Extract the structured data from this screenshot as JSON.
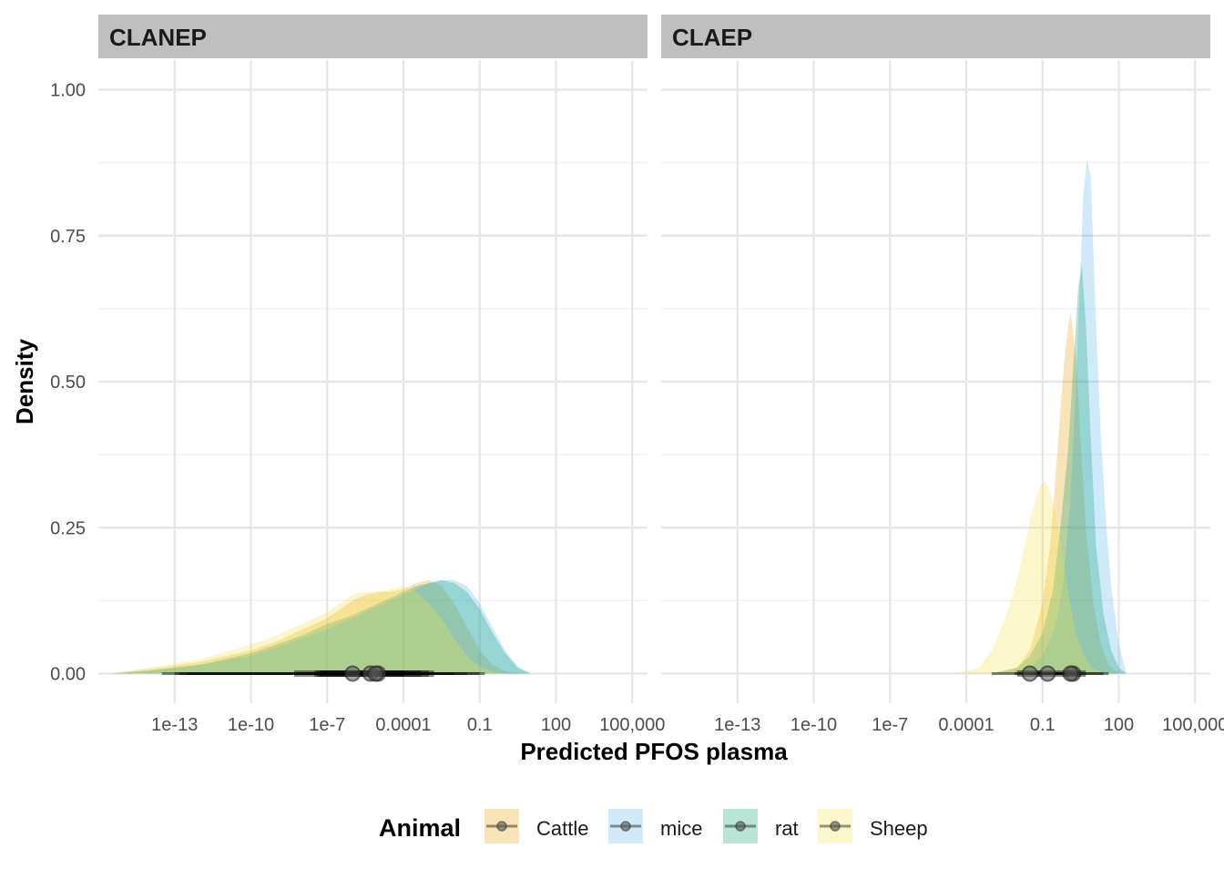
{
  "chart_data": {
    "type": "area",
    "subtype": "faceted density (ridgeline-style) with median and interval points",
    "xlabel": "Predicted PFOS plasma",
    "ylabel": "Density",
    "x_scale": "log10",
    "x_ticks": [
      {
        "value": 1e-13,
        "label": "1e-13"
      },
      {
        "value": 1e-10,
        "label": "1e-10"
      },
      {
        "value": 1e-07,
        "label": "1e-7"
      },
      {
        "value": 0.0001,
        "label": "0.0001"
      },
      {
        "value": 0.1,
        "label": "0.1"
      },
      {
        "value": 100,
        "label": "100"
      },
      {
        "value": 100000,
        "label": "100,000"
      }
    ],
    "xlim_log10": [
      -16.0,
      5.6
    ],
    "ylim": [
      0,
      1.05
    ],
    "y_ticks": [
      {
        "value": 0,
        "label": "0.00"
      },
      {
        "value": 0.25,
        "label": "0.25"
      },
      {
        "value": 0.5,
        "label": "0.50"
      },
      {
        "value": 0.75,
        "label": "0.75"
      },
      {
        "value": 1.0,
        "label": "1.00"
      }
    ],
    "grid": true,
    "legend": {
      "title": "Animal",
      "position": "bottom",
      "entries": [
        {
          "name": "Cattle",
          "color": "#E69F00"
        },
        {
          "name": "mice",
          "color": "#56B4E9"
        },
        {
          "name": "rat",
          "color": "#009E73"
        },
        {
          "name": "Sheep",
          "color": "#F0E442"
        }
      ]
    },
    "fill_opacity": 0.28,
    "facets": [
      {
        "title": "CLANEP",
        "series": [
          {
            "name": "Cattle",
            "color": "#E69F00",
            "log10_x": [
              -15.5,
              -14,
              -12,
              -10,
              -9,
              -8,
              -7,
              -6.5,
              -6,
              -5.5,
              -5,
              -4.5,
              -4,
              -3.5,
              -3,
              -2.5,
              -2,
              -1.5,
              -1,
              -0.5,
              0,
              0.5
            ],
            "density": [
              0,
              0.008,
              0.02,
              0.04,
              0.055,
              0.075,
              0.095,
              0.11,
              0.125,
              0.135,
              0.14,
              0.14,
              0.145,
              0.155,
              0.16,
              0.15,
              0.12,
              0.08,
              0.04,
              0.015,
              0.004,
              0
            ],
            "median_log10": -5.3,
            "interval50_log10": [
              -7.5,
              -3.3
            ],
            "interval95_log10": [
              -13,
              -1.5
            ]
          },
          {
            "name": "mice",
            "color": "#56B4E9",
            "log10_x": [
              -15.5,
              -14,
              -12,
              -10,
              -9,
              -8,
              -7,
              -6,
              -5,
              -4.5,
              -4,
              -3.5,
              -3,
              -2.5,
              -2,
              -1.5,
              -1,
              -0.5,
              0,
              0.5,
              1
            ],
            "density": [
              0,
              0.005,
              0.015,
              0.03,
              0.045,
              0.06,
              0.075,
              0.095,
              0.115,
              0.125,
              0.135,
              0.145,
              0.155,
              0.16,
              0.16,
              0.15,
              0.12,
              0.08,
              0.04,
              0.012,
              0
            ],
            "median_log10": -5.0,
            "interval50_log10": [
              -7.3,
              -2.8
            ],
            "interval95_log10": [
              -12.5,
              -0.8
            ]
          },
          {
            "name": "rat",
            "color": "#009E73",
            "log10_x": [
              -15.5,
              -14,
              -12,
              -10,
              -9,
              -8,
              -7,
              -6,
              -5,
              -4.5,
              -4,
              -3.5,
              -3,
              -2.5,
              -2,
              -1.5,
              -1,
              -0.5,
              0,
              0.5,
              1
            ],
            "density": [
              0,
              0.005,
              0.015,
              0.035,
              0.05,
              0.065,
              0.085,
              0.1,
              0.12,
              0.13,
              0.14,
              0.15,
              0.155,
              0.16,
              0.155,
              0.14,
              0.11,
              0.07,
              0.035,
              0.01,
              0
            ],
            "median_log10": -5.1,
            "interval50_log10": [
              -7.4,
              -3.0
            ],
            "interval95_log10": [
              -12.8,
              -1.0
            ]
          },
          {
            "name": "Sheep",
            "color": "#F0E442",
            "log10_x": [
              -15.5,
              -14,
              -12,
              -10,
              -9,
              -8,
              -7,
              -6.5,
              -6,
              -5.5,
              -5,
              -4.5,
              -4,
              -3.5,
              -3,
              -2.5,
              -2,
              -1.5,
              -1,
              -0.5,
              0
            ],
            "density": [
              0,
              0.01,
              0.025,
              0.05,
              0.065,
              0.085,
              0.105,
              0.12,
              0.135,
              0.14,
              0.14,
              0.145,
              0.15,
              0.14,
              0.12,
              0.095,
              0.06,
              0.03,
              0.012,
              0.003,
              0
            ],
            "median_log10": -6.0,
            "interval50_log10": [
              -8.3,
              -4.0
            ],
            "interval95_log10": [
              -13.5,
              -2.0
            ]
          }
        ]
      },
      {
        "title": "CLAEP",
        "series": [
          {
            "name": "Cattle",
            "color": "#E69F00",
            "log10_x": [
              -3,
              -2,
              -1.5,
              -1,
              -0.7,
              -0.5,
              -0.3,
              -0.1,
              0.1,
              0.3,
              0.5,
              0.7,
              1,
              1.3,
              1.6,
              2
            ],
            "density": [
              0,
              0.01,
              0.04,
              0.12,
              0.22,
              0.33,
              0.45,
              0.56,
              0.62,
              0.55,
              0.4,
              0.25,
              0.12,
              0.05,
              0.015,
              0
            ],
            "median_log10": -0.8,
            "interval50_log10": [
              -1.2,
              -0.3
            ],
            "interval95_log10": [
              -2.1,
              0.5
            ]
          },
          {
            "name": "mice",
            "color": "#56B4E9",
            "log10_x": [
              -2.5,
              -1.5,
              -1,
              -0.5,
              -0.2,
              0.1,
              0.3,
              0.5,
              0.6,
              0.75,
              0.9,
              1.1,
              1.3,
              1.5,
              1.7,
              2,
              2.3
            ],
            "density": [
              0,
              0.01,
              0.03,
              0.08,
              0.15,
              0.3,
              0.48,
              0.7,
              0.82,
              0.88,
              0.85,
              0.6,
              0.4,
              0.26,
              0.15,
              0.05,
              0
            ],
            "median_log10": 0.2,
            "interval50_log10": [
              -0.2,
              0.7
            ],
            "interval95_log10": [
              -1.1,
              1.6
            ]
          },
          {
            "name": "rat",
            "color": "#009E73",
            "log10_x": [
              -3,
              -2,
              -1.5,
              -1,
              -0.6,
              -0.3,
              0,
              0.2,
              0.4,
              0.55,
              0.7,
              0.9,
              1.1,
              1.4,
              1.7,
              2,
              2.3
            ],
            "density": [
              0,
              0.01,
              0.03,
              0.07,
              0.14,
              0.25,
              0.38,
              0.52,
              0.66,
              0.7,
              0.6,
              0.4,
              0.22,
              0.1,
              0.04,
              0.01,
              0
            ],
            "median_log10": 0.1,
            "interval50_log10": [
              -0.3,
              0.5
            ],
            "interval95_log10": [
              -1.4,
              1.4
            ]
          },
          {
            "name": "Sheep",
            "color": "#F0E442",
            "log10_x": [
              -4.5,
              -3.5,
              -3,
              -2.5,
              -2,
              -1.7,
              -1.4,
              -1.1,
              -0.9,
              -0.6,
              -0.3,
              0,
              0.3,
              0.7,
              1,
              1.5
            ],
            "density": [
              0,
              0.01,
              0.04,
              0.09,
              0.16,
              0.22,
              0.28,
              0.32,
              0.33,
              0.3,
              0.23,
              0.14,
              0.07,
              0.025,
              0.008,
              0
            ],
            "median_log10": -1.5,
            "interval50_log10": [
              -2.0,
              -1.0
            ],
            "interval95_log10": [
              -3.0,
              0.2
            ]
          }
        ]
      }
    ]
  }
}
